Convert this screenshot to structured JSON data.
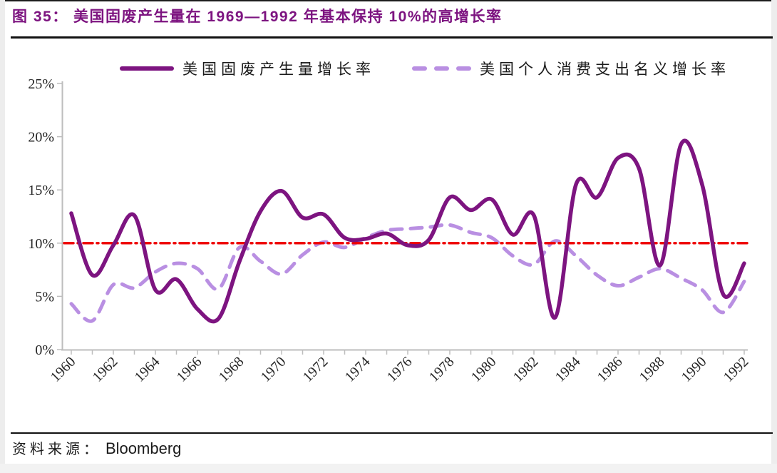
{
  "page": {
    "title": "图 35：  美国固废产生量在 1969—1992 年基本保持 10%的高增长率",
    "source_label": "资料来源：",
    "source_value": "Bloomberg"
  },
  "colors": {
    "title_purple": "#7D1480",
    "solid_line": "#7D1480",
    "dashed_line": "#B98FE2",
    "reference_red": "#EE0000",
    "axis_gray": "#bdbdbd",
    "text_dark": "#262626"
  },
  "chart_data": {
    "type": "line",
    "title": "",
    "xlabel": "",
    "ylabel": "",
    "x_range": [
      1960,
      1992
    ],
    "ylim": [
      0,
      25
    ],
    "grid": false,
    "legend_position": "top",
    "x": [
      1960,
      1961,
      1962,
      1963,
      1964,
      1965,
      1966,
      1967,
      1968,
      1969,
      1970,
      1971,
      1972,
      1973,
      1974,
      1975,
      1976,
      1977,
      1978,
      1979,
      1980,
      1981,
      1982,
      1983,
      1984,
      1985,
      1986,
      1987,
      1988,
      1989,
      1990,
      1991,
      1992
    ],
    "series": [
      {
        "name": "美国固废产生量增长率",
        "style": "solid",
        "color": "#7D1480",
        "values": [
          12.8,
          7.0,
          9.8,
          12.6,
          5.6,
          6.6,
          3.8,
          2.9,
          8.3,
          13.0,
          14.9,
          12.4,
          12.7,
          10.5,
          10.4,
          10.9,
          9.8,
          10.3,
          14.3,
          13.1,
          14.1,
          10.8,
          12.6,
          3.0,
          15.5,
          14.3,
          18.0,
          17.0,
          7.9,
          19.3,
          15.5,
          5.2,
          8.1
        ]
      },
      {
        "name": "美国个人消费支出名义增长率",
        "style": "dashed",
        "color": "#B98FE2",
        "values": [
          4.3,
          2.7,
          6.1,
          5.8,
          7.3,
          8.1,
          7.6,
          5.7,
          9.6,
          8.3,
          7.1,
          8.9,
          10.1,
          9.6,
          10.5,
          11.2,
          11.35,
          11.5,
          11.7,
          11.0,
          10.5,
          8.8,
          8.0,
          10.2,
          8.8,
          7.0,
          6.0,
          6.8,
          7.6,
          6.7,
          5.6,
          3.5,
          6.4
        ]
      }
    ],
    "reference_line": {
      "value": 10,
      "color": "#EE0000",
      "style": "dash-dot"
    },
    "y_tick_values": [
      0,
      5,
      10,
      15,
      20,
      25
    ],
    "y_tick_labels": [
      "0%",
      "5%",
      "10%",
      "15%",
      "20%",
      "25%"
    ],
    "x_tick_labels": [
      "1960",
      "1962",
      "1964",
      "1966",
      "1968",
      "1970",
      "1972",
      "1974",
      "1976",
      "1978",
      "1980",
      "1982",
      "1984",
      "1986",
      "1988",
      "1990",
      "1992"
    ]
  }
}
